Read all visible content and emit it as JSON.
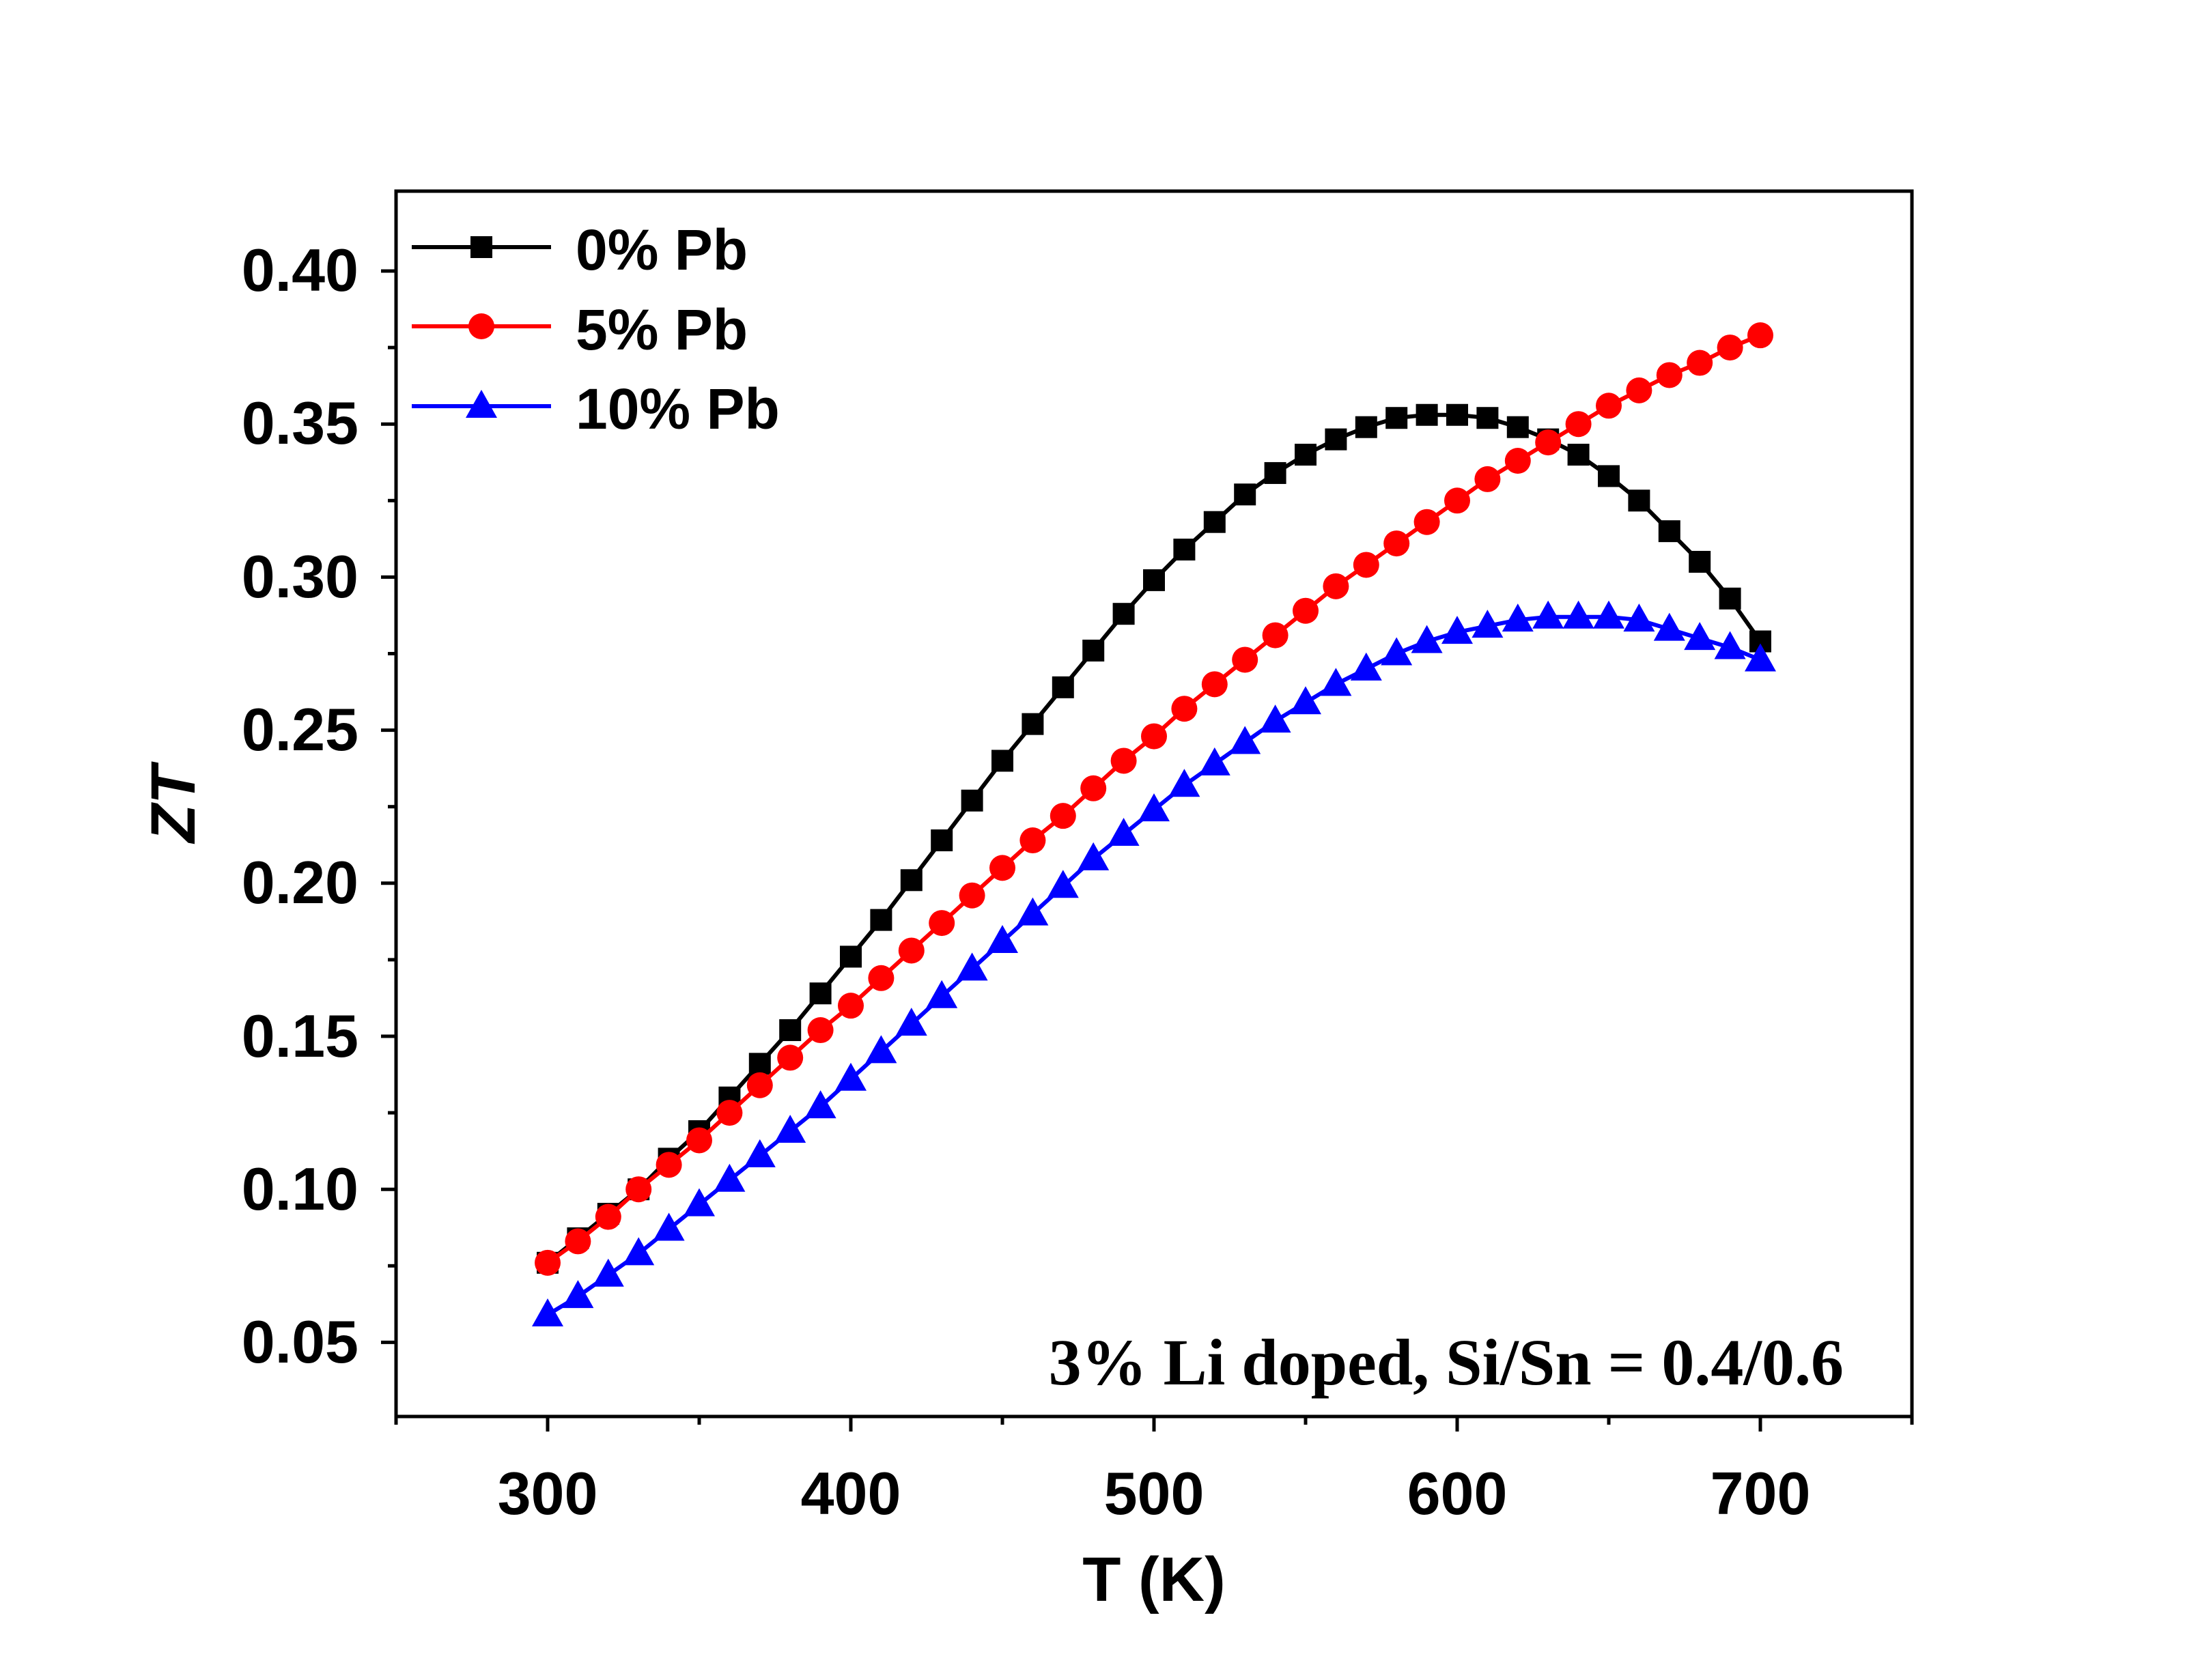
{
  "chart_data": {
    "type": "line",
    "xlabel": "T (K)",
    "ylabel": "ZT",
    "xlim": [
      250,
      750
    ],
    "ylim": [
      0.025,
      0.425
    ],
    "xticks": [
      "300",
      "400",
      "500",
      "600",
      "700"
    ],
    "yticks": [
      "0.05",
      "0.10",
      "0.15",
      "0.20",
      "0.25",
      "0.30",
      "0.35",
      "0.40"
    ],
    "annotation": "3% Li doped, Si/Sn = 0.4/0.6",
    "legend_position": "top-left",
    "grid": false,
    "x": [
      300,
      310,
      320,
      330,
      340,
      350,
      360,
      370,
      380,
      390,
      400,
      410,
      420,
      430,
      440,
      450,
      460,
      470,
      480,
      490,
      500,
      510,
      520,
      530,
      540,
      550,
      560,
      570,
      580,
      590,
      600,
      610,
      620,
      630,
      640,
      650,
      660,
      670,
      680,
      690,
      700
    ],
    "series": [
      {
        "name": "0% Pb",
        "color": "#000000",
        "marker": "square",
        "values": [
          0.076,
          0.084,
          0.092,
          0.1,
          0.11,
          0.119,
          0.13,
          0.141,
          0.152,
          0.164,
          0.176,
          0.188,
          0.201,
          0.214,
          0.227,
          0.24,
          0.252,
          0.264,
          0.276,
          0.288,
          0.299,
          0.309,
          0.318,
          0.327,
          0.334,
          0.34,
          0.345,
          0.349,
          0.352,
          0.353,
          0.353,
          0.352,
          0.349,
          0.345,
          0.34,
          0.333,
          0.325,
          0.315,
          0.305,
          0.293,
          0.279
        ]
      },
      {
        "name": "5% Pb",
        "color": "#ff0000",
        "marker": "circle",
        "values": [
          0.076,
          0.083,
          0.091,
          0.1,
          0.108,
          0.116,
          0.125,
          0.134,
          0.143,
          0.152,
          0.16,
          0.169,
          0.178,
          0.187,
          0.196,
          0.205,
          0.214,
          0.222,
          0.231,
          0.24,
          0.248,
          0.257,
          0.265,
          0.273,
          0.281,
          0.289,
          0.297,
          0.304,
          0.311,
          0.318,
          0.325,
          0.332,
          0.338,
          0.344,
          0.35,
          0.356,
          0.361,
          0.366,
          0.37,
          0.375,
          0.379
        ]
      },
      {
        "name": "10% Pb",
        "color": "#0000ff",
        "marker": "triangle",
        "values": [
          0.059,
          0.065,
          0.072,
          0.079,
          0.087,
          0.095,
          0.103,
          0.111,
          0.119,
          0.127,
          0.136,
          0.145,
          0.154,
          0.163,
          0.172,
          0.181,
          0.19,
          0.199,
          0.208,
          0.216,
          0.224,
          0.232,
          0.239,
          0.246,
          0.253,
          0.259,
          0.265,
          0.27,
          0.275,
          0.279,
          0.282,
          0.284,
          0.286,
          0.287,
          0.287,
          0.287,
          0.286,
          0.283,
          0.28,
          0.277,
          0.273
        ]
      }
    ]
  }
}
